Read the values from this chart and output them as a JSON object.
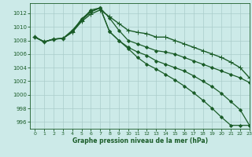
{
  "background_color": "#cceae8",
  "grid_color": "#aaccca",
  "line_color": "#1a5c28",
  "xlabel": "Graphe pression niveau de la mer (hPa)",
  "ylim": [
    995.0,
    1013.5
  ],
  "xlim": [
    -0.5,
    23
  ],
  "yticks": [
    996,
    998,
    1000,
    1002,
    1004,
    1006,
    1008,
    1010,
    1012
  ],
  "xticks": [
    0,
    1,
    2,
    3,
    4,
    5,
    6,
    7,
    8,
    9,
    10,
    11,
    12,
    13,
    14,
    15,
    16,
    17,
    18,
    19,
    20,
    21,
    22,
    23
  ],
  "series": [
    {
      "y": [
        1008.5,
        1007.8,
        1008.2,
        1008.3,
        1009.2,
        1010.8,
        1011.9,
        1012.5,
        1011.5,
        1010.5,
        1009.5,
        1009.2,
        1009.0,
        1008.5,
        1008.5,
        1008.0,
        1007.5,
        1007.0,
        1006.5,
        1006.0,
        1005.5,
        1004.8,
        1004.0,
        1002.5
      ],
      "marker": "+",
      "markersize": 4,
      "linewidth": 1.0
    },
    {
      "y": [
        1008.5,
        1007.8,
        1008.2,
        1008.3,
        1009.3,
        1011.0,
        1012.2,
        1012.8,
        1011.3,
        1009.5,
        1008.0,
        1007.5,
        1007.0,
        1006.5,
        1006.3,
        1006.0,
        1005.5,
        1005.0,
        1004.5,
        1004.0,
        1003.5,
        1003.0,
        1002.5,
        1001.8
      ],
      "marker": "D",
      "markersize": 2,
      "linewidth": 0.9
    },
    {
      "y": [
        1008.5,
        1007.8,
        1008.2,
        1008.3,
        1009.3,
        1011.2,
        1012.3,
        1012.8,
        1009.3,
        1008.0,
        1007.0,
        1006.3,
        1005.8,
        1005.0,
        1004.5,
        1004.0,
        1003.5,
        1002.8,
        1002.0,
        1001.2,
        1000.2,
        999.0,
        997.8,
        995.5
      ],
      "marker": "D",
      "markersize": 2,
      "linewidth": 0.9
    },
    {
      "y": [
        1008.5,
        1007.8,
        1008.2,
        1008.3,
        1009.5,
        1011.0,
        1012.5,
        1012.8,
        1009.3,
        1008.0,
        1006.8,
        1005.5,
        1004.5,
        1003.8,
        1003.0,
        1002.2,
        1001.3,
        1000.3,
        999.2,
        998.0,
        996.7,
        995.5,
        995.5,
        995.5
      ],
      "marker": "D",
      "markersize": 2,
      "linewidth": 0.9
    }
  ]
}
